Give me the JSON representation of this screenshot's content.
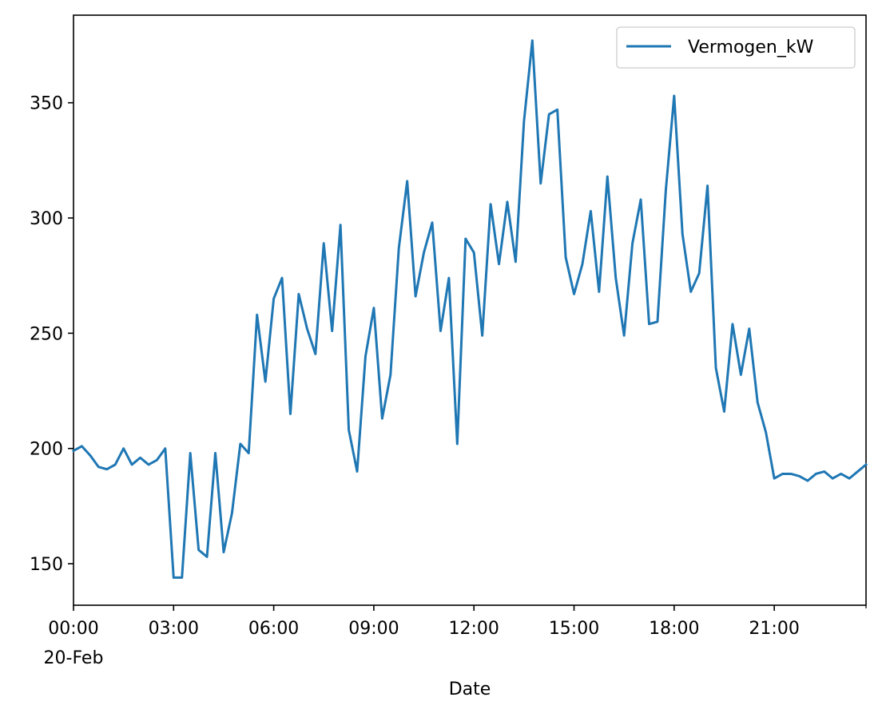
{
  "chart_data": {
    "type": "line",
    "title": "",
    "xlabel": "Date",
    "ylabel": "",
    "x_start": "2024-02-20T00:00",
    "x_step_minutes": 15,
    "xlim": [
      "00:00",
      "23:45"
    ],
    "ylim": [
      132,
      388
    ],
    "x_ticks": [
      {
        "label": "00:00",
        "sublabel": "20-Feb",
        "minutes": 0
      },
      {
        "label": "03:00",
        "sublabel": "",
        "minutes": 180
      },
      {
        "label": "06:00",
        "sublabel": "",
        "minutes": 360
      },
      {
        "label": "09:00",
        "sublabel": "",
        "minutes": 540
      },
      {
        "label": "12:00",
        "sublabel": "",
        "minutes": 720
      },
      {
        "label": "15:00",
        "sublabel": "",
        "minutes": 900
      },
      {
        "label": "18:00",
        "sublabel": "",
        "minutes": 1080
      },
      {
        "label": "21:00",
        "sublabel": "",
        "minutes": 1260
      }
    ],
    "y_ticks": [
      150,
      200,
      250,
      300,
      350
    ],
    "grid": false,
    "legend_position": "top-right",
    "series": [
      {
        "name": "Vermogen_kW",
        "color": "#1f77b4",
        "values": [
          199,
          201,
          197,
          192,
          191,
          193,
          200,
          193,
          196,
          193,
          195,
          200,
          144,
          144,
          198,
          156,
          153,
          198,
          155,
          172,
          202,
          198,
          258,
          229,
          265,
          274,
          215,
          267,
          252,
          241,
          289,
          251,
          297,
          208,
          190,
          240,
          261,
          213,
          232,
          287,
          316,
          266,
          285,
          298,
          251,
          274,
          202,
          291,
          285,
          249,
          306,
          280,
          307,
          281,
          342,
          377,
          315,
          345,
          347,
          283,
          267,
          280,
          303,
          268,
          318,
          274,
          249,
          289,
          308,
          254,
          255,
          312,
          353,
          293,
          268,
          276,
          314,
          235,
          216,
          254,
          232,
          252,
          220,
          207,
          187,
          189,
          189,
          188,
          186,
          189,
          190,
          187,
          189,
          187,
          190,
          193
        ]
      }
    ]
  }
}
